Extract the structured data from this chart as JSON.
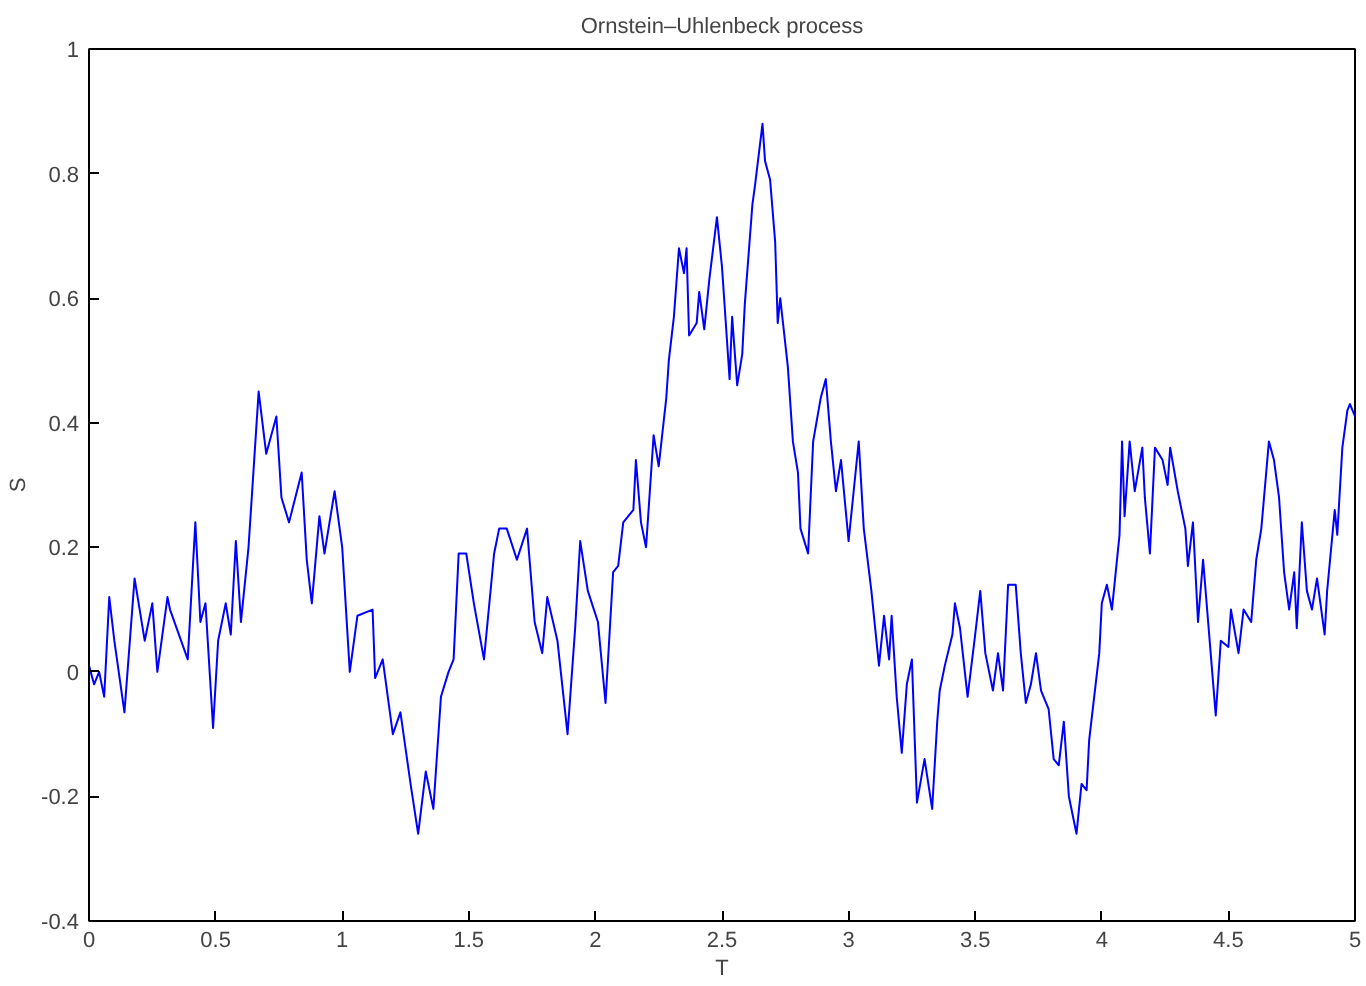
{
  "chart_data": {
    "type": "line",
    "title": "Ornstein–Uhlenbeck process",
    "xlabel": "T",
    "ylabel": "S",
    "xlim": [
      0,
      5
    ],
    "ylim": [
      -0.4,
      1
    ],
    "xticks": [
      0,
      0.5,
      1,
      1.5,
      2,
      2.5,
      3,
      3.5,
      4,
      4.5,
      5
    ],
    "yticks": [
      -0.4,
      -0.2,
      0,
      0.2,
      0.4,
      0.6,
      0.8,
      1
    ],
    "grid": false,
    "x": [
      0,
      0.02,
      0.04,
      0.06,
      0.08,
      0.1,
      0.14,
      0.18,
      0.22,
      0.25,
      0.27,
      0.31,
      0.32,
      0.39,
      0.42,
      0.44,
      0.46,
      0.49,
      0.51,
      0.54,
      0.56,
      0.58,
      0.6,
      0.63,
      0.67,
      0.7,
      0.74,
      0.76,
      0.79,
      0.84,
      0.86,
      0.88,
      0.91,
      0.93,
      0.97,
      1.0,
      1.03,
      1.06,
      1.12,
      1.13,
      1.16,
      1.2,
      1.23,
      1.27,
      1.3,
      1.33,
      1.36,
      1.39,
      1.42,
      1.44,
      1.46,
      1.49,
      1.52,
      1.56,
      1.6,
      1.62,
      1.65,
      1.69,
      1.73,
      1.76,
      1.79,
      1.81,
      1.85,
      1.89,
      1.92,
      1.94,
      1.97,
      2.01,
      2.04,
      2.07,
      2.09,
      2.11,
      2.15,
      2.16,
      2.18,
      2.2,
      2.23,
      2.25,
      2.28,
      2.29,
      2.31,
      2.33,
      2.35,
      2.36,
      2.37,
      2.4,
      2.41,
      2.43,
      2.45,
      2.48,
      2.5,
      2.53,
      2.54,
      2.56,
      2.58,
      2.59,
      2.62,
      2.63,
      2.66,
      2.67,
      2.69,
      2.71,
      2.72,
      2.73,
      2.76,
      2.78,
      2.8,
      2.81,
      2.84,
      2.86,
      2.89,
      2.91,
      2.93,
      2.95,
      2.97,
      3.0,
      3.02,
      3.04,
      3.06,
      3.09,
      3.1,
      3.12,
      3.14,
      3.16,
      3.17,
      3.19,
      3.21,
      3.23,
      3.25,
      3.27,
      3.3,
      3.33,
      3.35,
      3.36,
      3.38,
      3.41,
      3.42,
      3.44,
      3.47,
      3.5,
      3.52,
      3.54,
      3.57,
      3.59,
      3.61,
      3.63,
      3.66,
      3.68,
      3.7,
      3.72,
      3.74,
      3.76,
      3.79,
      3.81,
      3.83,
      3.85,
      3.87,
      3.9,
      3.92,
      3.94,
      3.95,
      3.99,
      4.0,
      4.02,
      4.04,
      4.07,
      4.08,
      4.09,
      4.11,
      4.13,
      4.16,
      4.17,
      4.19,
      4.21,
      4.24,
      4.26,
      4.27,
      4.3,
      4.33,
      4.34,
      4.36,
      4.38,
      4.4,
      4.43,
      4.45,
      4.47,
      4.5,
      4.51,
      4.54,
      4.56,
      4.59,
      4.61,
      4.63,
      4.66,
      4.68,
      4.7,
      4.72,
      4.74,
      4.76,
      4.77,
      4.79,
      4.81,
      4.83,
      4.85,
      4.88,
      4.89,
      4.92,
      4.93,
      4.95,
      4.97,
      4.98,
      5.0
    ],
    "series": [
      {
        "color": "#0000ff",
        "values": [
          0.01,
          -0.02,
          0.0,
          -0.04,
          0.12,
          0.05,
          -0.065,
          0.15,
          0.05,
          0.11,
          0.0,
          0.12,
          0.1,
          0.02,
          0.24,
          0.08,
          0.11,
          -0.09,
          0.05,
          0.11,
          0.06,
          0.21,
          0.08,
          0.2,
          0.45,
          0.35,
          0.41,
          0.28,
          0.24,
          0.32,
          0.18,
          0.11,
          0.25,
          0.19,
          0.29,
          0.2,
          0.0,
          0.09,
          0.1,
          -0.01,
          0.02,
          -0.1,
          -0.065,
          -0.18,
          -0.26,
          -0.16,
          -0.22,
          -0.04,
          0.0,
          0.02,
          0.19,
          0.19,
          0.11,
          0.02,
          0.19,
          0.23,
          0.23,
          0.18,
          0.23,
          0.08,
          0.03,
          0.12,
          0.05,
          -0.1,
          0.07,
          0.21,
          0.13,
          0.08,
          -0.05,
          0.16,
          0.17,
          0.24,
          0.26,
          0.34,
          0.24,
          0.2,
          0.38,
          0.33,
          0.44,
          0.5,
          0.57,
          0.68,
          0.64,
          0.68,
          0.54,
          0.56,
          0.61,
          0.55,
          0.63,
          0.73,
          0.65,
          0.47,
          0.57,
          0.46,
          0.51,
          0.59,
          0.75,
          0.78,
          0.88,
          0.82,
          0.79,
          0.69,
          0.56,
          0.6,
          0.49,
          0.37,
          0.32,
          0.23,
          0.19,
          0.37,
          0.44,
          0.47,
          0.37,
          0.29,
          0.34,
          0.21,
          0.29,
          0.37,
          0.23,
          0.13,
          0.09,
          0.01,
          0.09,
          0.02,
          0.09,
          -0.04,
          -0.13,
          -0.02,
          0.02,
          -0.21,
          -0.14,
          -0.22,
          -0.08,
          -0.03,
          0.01,
          0.06,
          0.11,
          0.07,
          -0.04,
          0.06,
          0.13,
          0.03,
          -0.03,
          0.03,
          -0.03,
          0.14,
          0.14,
          0.03,
          -0.05,
          -0.02,
          0.03,
          -0.03,
          -0.06,
          -0.14,
          -0.15,
          -0.08,
          -0.2,
          -0.26,
          -0.18,
          -0.19,
          -0.11,
          0.03,
          0.11,
          0.14,
          0.1,
          0.22,
          0.37,
          0.25,
          0.37,
          0.29,
          0.36,
          0.28,
          0.19,
          0.36,
          0.34,
          0.3,
          0.36,
          0.29,
          0.23,
          0.17,
          0.24,
          0.08,
          0.18,
          0.03,
          -0.07,
          0.05,
          0.04,
          0.1,
          0.03,
          0.1,
          0.08,
          0.18,
          0.23,
          0.37,
          0.34,
          0.28,
          0.16,
          0.1,
          0.16,
          0.07,
          0.24,
          0.13,
          0.1,
          0.15,
          0.06,
          0.13,
          0.26,
          0.22,
          0.36,
          0.42,
          0.43,
          0.41
        ]
      }
    ]
  }
}
